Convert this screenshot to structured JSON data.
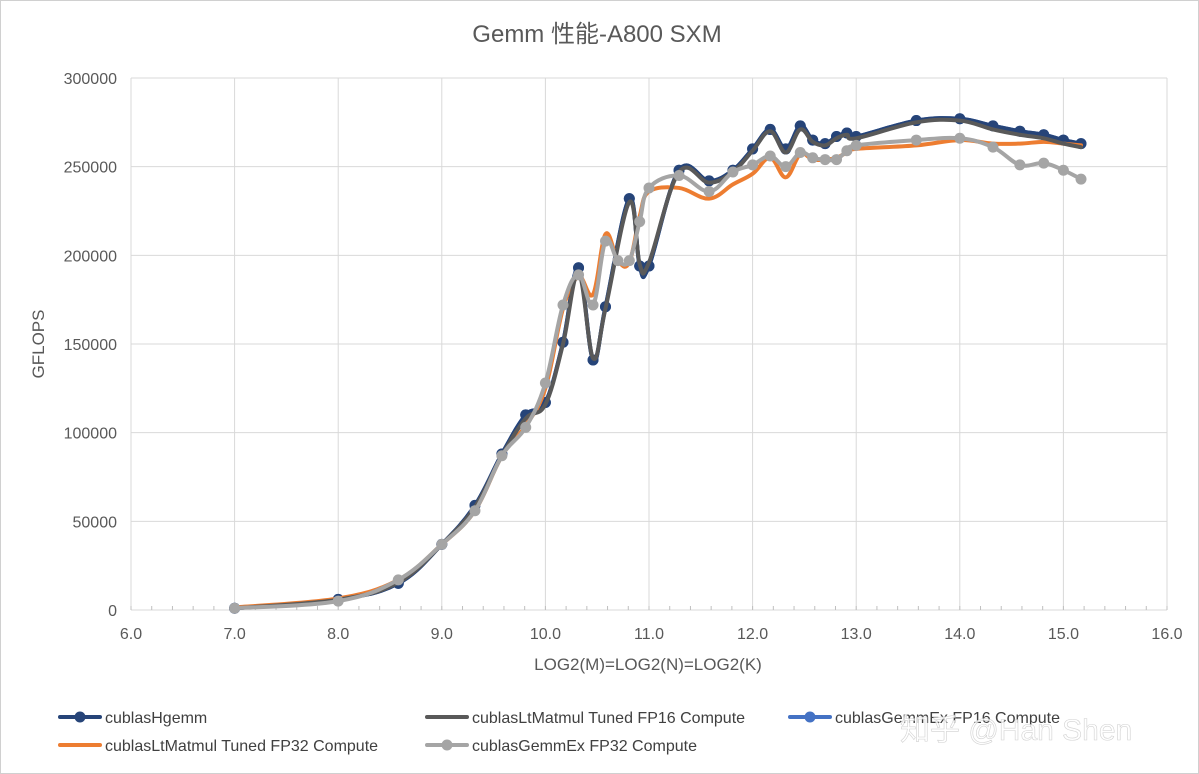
{
  "chart_data": {
    "type": "line",
    "title": "Gemm 性能-A800 SXM",
    "xlabel": "LOG2(M)=LOG2(N)=LOG2(K)",
    "ylabel": "GFLOPS",
    "xlim": [
      6.0,
      16.0
    ],
    "ylim": [
      0,
      300000
    ],
    "xticks": [
      "6.0",
      "7.0",
      "8.0",
      "9.0",
      "10.0",
      "11.0",
      "12.0",
      "13.0",
      "14.0",
      "15.0",
      "16.0"
    ],
    "yticks": [
      "0",
      "50000",
      "100000",
      "150000",
      "200000",
      "250000",
      "300000"
    ],
    "grid": true,
    "legend_position": "bottom",
    "watermark": "知乎 @Han Shen",
    "series": [
      {
        "name": "cublasHgemm",
        "color": "#264478",
        "markers": true,
        "x": [
          7.0,
          8.0,
          8.58,
          9.0,
          9.32,
          9.58,
          9.81,
          10.0,
          10.17,
          10.32,
          10.46,
          10.58,
          10.81,
          10.91,
          11.0,
          11.29,
          11.58,
          11.81,
          12.0,
          12.17,
          12.32,
          12.46,
          12.58,
          12.7,
          12.81,
          12.91,
          13.0,
          13.58,
          14.0,
          14.32,
          14.58,
          14.81,
          15.0,
          15.17
        ],
        "y": [
          1000,
          6000,
          15000,
          37000,
          59000,
          88000,
          110000,
          117000,
          151000,
          193000,
          141000,
          171000,
          232000,
          194000,
          194000,
          248000,
          242000,
          248000,
          260000,
          271000,
          260000,
          273000,
          265000,
          263000,
          267000,
          269000,
          267000,
          276000,
          277000,
          273000,
          270000,
          268000,
          265000,
          263000
        ]
      },
      {
        "name": "cublasLtMatmul Tuned FP16 Compute",
        "color": "#595959",
        "markers": false,
        "x": [
          7.0,
          8.0,
          8.58,
          9.0,
          9.32,
          9.58,
          9.81,
          10.0,
          10.17,
          10.32,
          10.46,
          10.58,
          10.81,
          10.91,
          11.0,
          11.29,
          11.58,
          11.81,
          12.0,
          12.17,
          12.32,
          12.46,
          12.58,
          12.7,
          12.81,
          12.91,
          13.0,
          13.58,
          14.0,
          14.32,
          14.58,
          14.81,
          15.0,
          15.17
        ],
        "y": [
          1000,
          5800,
          15500,
          37000,
          58000,
          87000,
          108000,
          116000,
          150000,
          190000,
          142000,
          170000,
          230000,
          195000,
          196000,
          247000,
          241000,
          247000,
          259000,
          270000,
          258000,
          271000,
          264000,
          262000,
          266000,
          268000,
          266000,
          275000,
          276000,
          271000,
          268000,
          266000,
          263000,
          261000
        ]
      },
      {
        "name": "cublasGemmEx FP16 Compute",
        "color": "#4472C4",
        "markers": true,
        "x": [
          7.0,
          8.0,
          8.58,
          9.0,
          9.32,
          9.58,
          9.81,
          10.0,
          10.17,
          10.32,
          10.46,
          10.58,
          10.81,
          10.91,
          11.0,
          11.29,
          11.58,
          11.81,
          12.0,
          12.17,
          12.32,
          12.46,
          12.58,
          12.7,
          12.81,
          12.91,
          13.0,
          13.58,
          14.0,
          14.32,
          14.58,
          14.81,
          15.0,
          15.17
        ],
        "y": [
          1000,
          6000,
          15000,
          37000,
          59000,
          88000,
          110000,
          117000,
          151000,
          193000,
          141000,
          171000,
          232000,
          194000,
          194000,
          248000,
          242000,
          248000,
          260000,
          271000,
          260000,
          273000,
          265000,
          263000,
          267000,
          269000,
          267000,
          276000,
          277000,
          273000,
          270000,
          268000,
          265000,
          263000
        ]
      },
      {
        "name": "cublasLtMatmul Tuned FP32 Compute",
        "color": "#ED7D31",
        "markers": false,
        "x": [
          7.0,
          8.0,
          8.58,
          9.0,
          9.32,
          9.58,
          9.81,
          10.0,
          10.17,
          10.32,
          10.46,
          10.58,
          10.7,
          10.81,
          10.91,
          11.0,
          11.29,
          11.58,
          11.81,
          12.0,
          12.17,
          12.32,
          12.46,
          12.58,
          12.7,
          12.81,
          12.91,
          13.0,
          13.58,
          14.0,
          14.32,
          14.58,
          14.81,
          15.0,
          15.17
        ],
        "y": [
          1500,
          6500,
          17000,
          37000,
          56000,
          87000,
          104000,
          125000,
          170000,
          188000,
          178000,
          212000,
          197000,
          196000,
          222000,
          236000,
          238000,
          232000,
          240000,
          246000,
          255000,
          244000,
          257000,
          254000,
          254000,
          255000,
          258000,
          260000,
          262000,
          265000,
          263000,
          263000,
          264000,
          263000,
          262000
        ]
      },
      {
        "name": "cublasGemmEx FP32 Compute",
        "color": "#A5A5A5",
        "markers": true,
        "x": [
          7.0,
          8.0,
          8.58,
          9.0,
          9.32,
          9.58,
          9.81,
          10.0,
          10.17,
          10.32,
          10.46,
          10.58,
          10.7,
          10.81,
          10.91,
          11.0,
          11.29,
          11.58,
          11.81,
          12.0,
          12.17,
          12.32,
          12.46,
          12.58,
          12.7,
          12.81,
          12.91,
          13.0,
          13.58,
          14.0,
          14.32,
          14.58,
          14.81,
          15.0,
          15.17
        ],
        "y": [
          1000,
          5000,
          17000,
          37000,
          56000,
          87000,
          103000,
          128000,
          172000,
          189000,
          172000,
          208000,
          197000,
          197000,
          219000,
          238000,
          245000,
          236000,
          247000,
          251000,
          256000,
          250000,
          258000,
          255000,
          254000,
          254000,
          259000,
          262000,
          265000,
          266000,
          261000,
          251000,
          252000,
          248000,
          243000
        ]
      }
    ]
  }
}
